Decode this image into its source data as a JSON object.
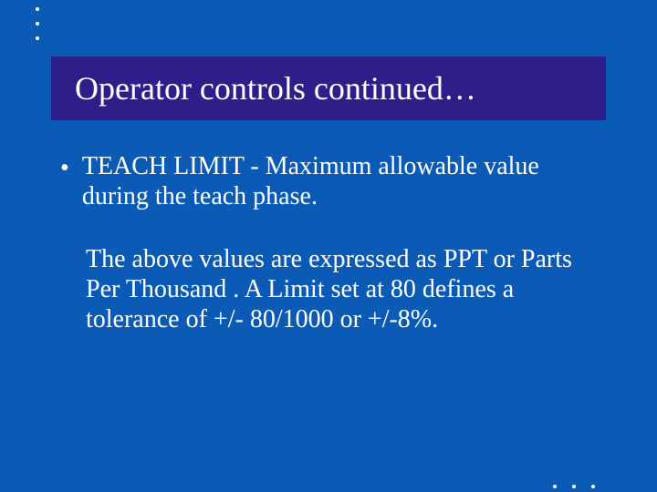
{
  "slide": {
    "title": "Operator controls continued…",
    "bullet": {
      "term": "TEACH LIMIT",
      "definition": "Maximum allowable value during the teach phase."
    },
    "paragraph": "The above values are expressed as PPT or Parts Per Thousand . A Limit set at 80 defines a tolerance of +/- 80/1000 or +/-8%.",
    "colors": {
      "background": "#0b5bb6",
      "title_background": "#2e1e8a",
      "text": "#ffffff"
    },
    "typography": {
      "title_fontsize": 36,
      "body_fontsize": 28,
      "font_family": "Georgia, Times New Roman, serif"
    }
  }
}
